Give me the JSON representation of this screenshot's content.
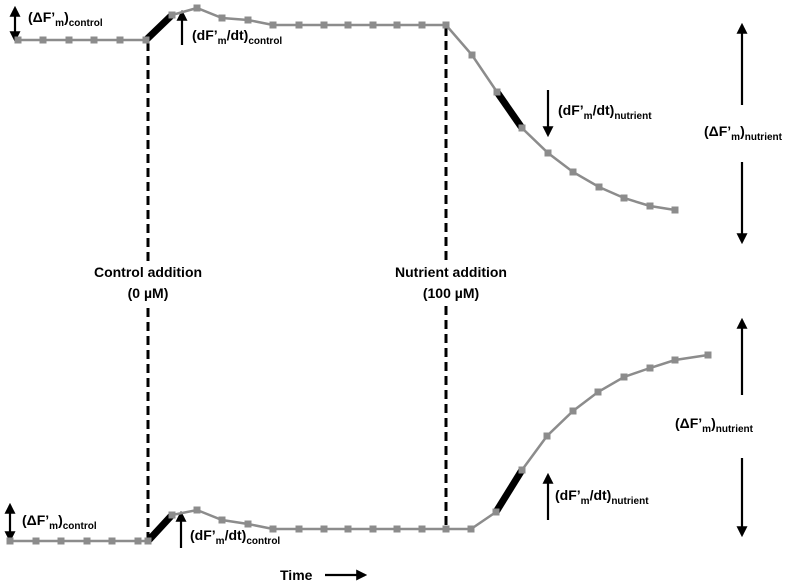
{
  "events": [
    {
      "label": "Control addition",
      "concentration": "(0 µM)"
    },
    {
      "label": "Nutrient addition",
      "concentration": "(100 µM)"
    }
  ],
  "top_labels": [
    {
      "open": "(ΔF’",
      "m": "m",
      "close": ")",
      "sub": "control"
    },
    {
      "open": "(dF’",
      "m": "m",
      "close": "/dt)",
      "sub": "control"
    },
    {
      "open": "(dF’",
      "m": "m",
      "close": "/dt)",
      "sub": "nutrient"
    },
    {
      "open": "(ΔF’",
      "m": "m",
      "close": ")",
      "sub": "nutrient"
    }
  ],
  "bottom_labels": [
    {
      "open": "(ΔF’",
      "m": "m",
      "close": ")",
      "sub": "control"
    },
    {
      "open": "(dF’",
      "m": "m",
      "close": "/dt)",
      "sub": "control"
    },
    {
      "open": "(dF’",
      "m": "m",
      "close": "/dt)",
      "sub": "nutrient"
    },
    {
      "open": "(ΔF’",
      "m": "m",
      "close": ")",
      "sub": "nutrient"
    }
  ],
  "x_label": "Time"
}
